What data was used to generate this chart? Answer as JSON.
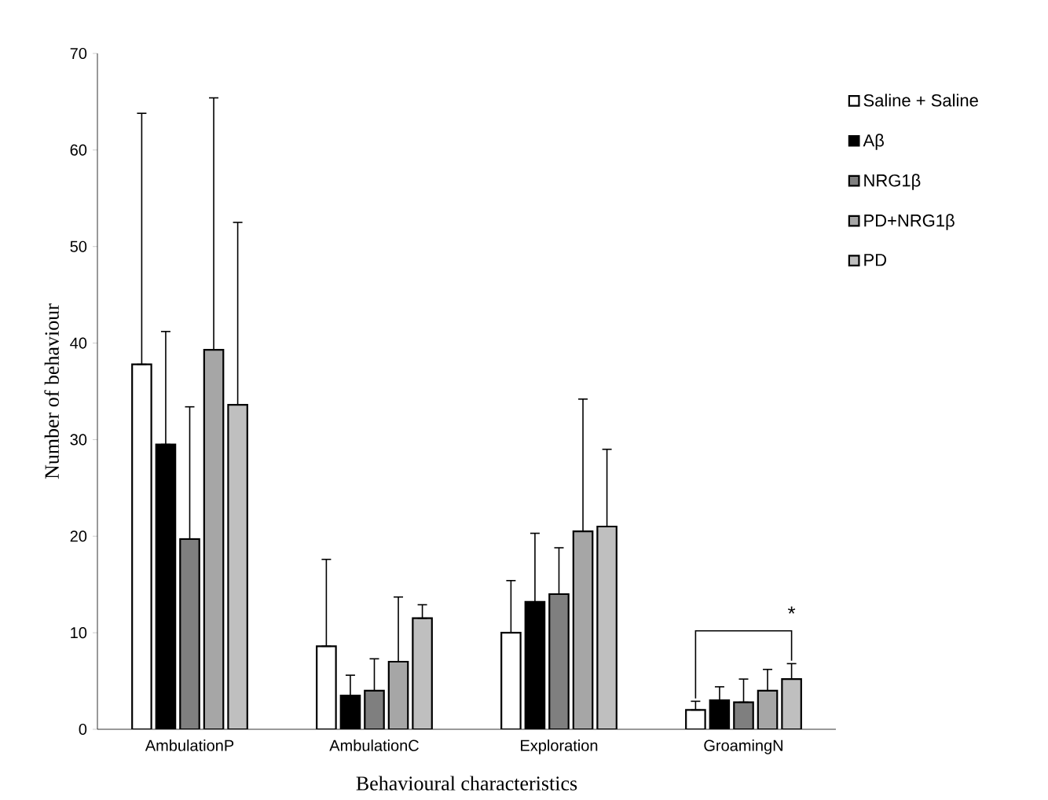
{
  "chart_data": {
    "type": "bar",
    "xlabel": "Behavioural characteristics",
    "ylabel": "Number of behaviour",
    "categories": [
      "AmbulationP",
      "AmbulationC",
      "Exploration",
      "GroamingN"
    ],
    "series": [
      {
        "name": "Saline + Saline",
        "color": "#ffffff",
        "values": [
          37.8,
          8.6,
          10,
          2
        ],
        "errors": [
          [
            37.8,
            63.8
          ],
          [
            8.6,
            17.6
          ],
          [
            10,
            15.4
          ],
          [
            2,
            2.9
          ]
        ]
      },
      {
        "name": "Aβ",
        "color": "#000000",
        "values": [
          29.5,
          3.5,
          13.2,
          3
        ],
        "errors": [
          [
            29.5,
            41.2
          ],
          [
            3.5,
            5.6
          ],
          [
            13.2,
            20.3
          ],
          [
            3,
            4.4
          ]
        ]
      },
      {
        "name": "NRG1β",
        "color": "#7f7f7f",
        "values": [
          19.7,
          4,
          14,
          2.8
        ],
        "errors": [
          [
            19.7,
            33.4
          ],
          [
            4,
            7.3
          ],
          [
            14,
            18.8
          ],
          [
            2.8,
            5.2
          ]
        ]
      },
      {
        "name": "PD+NRG1β",
        "color": "#a6a6a6",
        "values": [
          39.3,
          7,
          20.5,
          4
        ],
        "errors": [
          [
            39.3,
            65.4
          ],
          [
            7,
            13.7
          ],
          [
            20.5,
            34.2
          ],
          [
            4,
            6.2
          ]
        ]
      },
      {
        "name": "PD",
        "color": "#bfbfbf",
        "values": [
          33.6,
          11.5,
          21,
          5.2
        ],
        "errors": [
          [
            33.6,
            52.5
          ],
          [
            11.5,
            12.9
          ],
          [
            21,
            29
          ],
          [
            5.2,
            6.8
          ]
        ]
      }
    ],
    "ylim": [
      0,
      70
    ],
    "yticks": [
      0,
      10,
      20,
      30,
      40,
      50,
      60,
      70
    ],
    "grid": false,
    "legend": "right",
    "annotations": [
      "*"
    ]
  }
}
